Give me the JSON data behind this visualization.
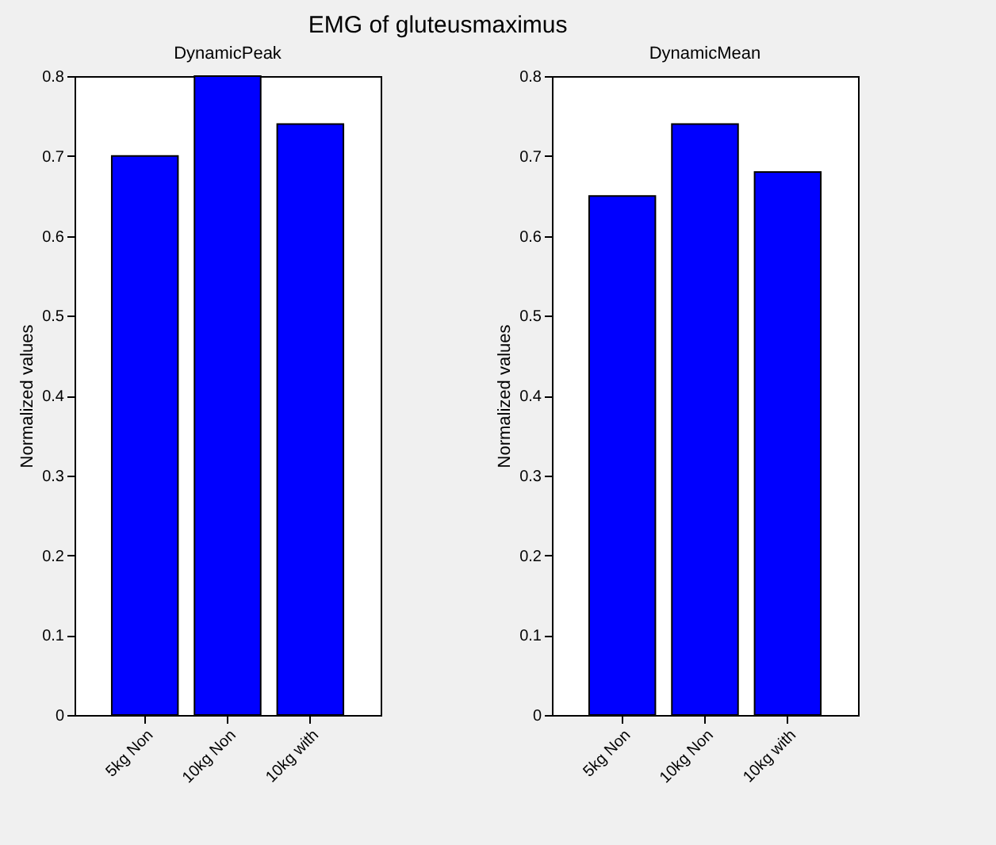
{
  "chart_data": [
    {
      "type": "bar",
      "title": "DynamicPeak",
      "ylabel": "Normalized values",
      "annotations": [
        "EMG of gluteusmaximus"
      ],
      "categories": [
        "5kg Non",
        "10kg Non",
        "10kg with"
      ],
      "values": [
        0.7,
        0.8,
        0.74
      ],
      "color": "#0000ff",
      "ylim": [
        0,
        0.8
      ],
      "yticks": [
        0,
        0.1,
        0.2,
        0.3,
        0.4,
        0.5,
        0.6,
        0.7,
        0.8
      ]
    },
    {
      "type": "bar",
      "title": "DynamicMean",
      "ylabel": "Normalized values",
      "categories": [
        "5kg Non",
        "10kg Non",
        "10kg with"
      ],
      "values": [
        0.65,
        0.74,
        0.68
      ],
      "color": "#0000ff",
      "ylim": [
        0,
        0.8
      ],
      "yticks": [
        0,
        0.1,
        0.2,
        0.3,
        0.4,
        0.5,
        0.6,
        0.7,
        0.8
      ]
    }
  ]
}
